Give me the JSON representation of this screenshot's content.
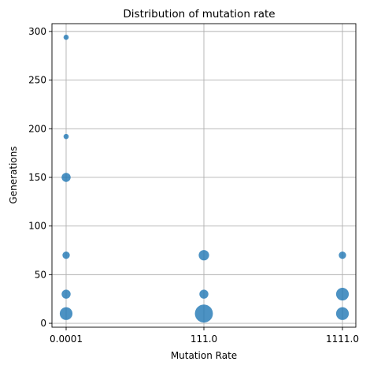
{
  "chart_data": {
    "type": "scatter",
    "title": "Distribution of mutation rate",
    "xlabel": "Mutation Rate",
    "ylabel": "Generations",
    "x_categories": [
      "0.0001",
      "111.0",
      "1111.0"
    ],
    "y_ticks": [
      0,
      50,
      100,
      150,
      200,
      250,
      300
    ],
    "ylim": [
      -4,
      308
    ],
    "grid": true,
    "colors": {
      "point": "#1f77b4"
    },
    "points": [
      {
        "x": "0.0001",
        "y": 294,
        "count": 1
      },
      {
        "x": "0.0001",
        "y": 192,
        "count": 1
      },
      {
        "x": "0.0001",
        "y": 150,
        "count": 3
      },
      {
        "x": "0.0001",
        "y": 70,
        "count": 2
      },
      {
        "x": "0.0001",
        "y": 30,
        "count": 3
      },
      {
        "x": "0.0001",
        "y": 10,
        "count": 6
      },
      {
        "x": "111.0",
        "y": 70,
        "count": 4
      },
      {
        "x": "111.0",
        "y": 30,
        "count": 3
      },
      {
        "x": "111.0",
        "y": 10,
        "count": 12
      },
      {
        "x": "1111.0",
        "y": 70,
        "count": 2
      },
      {
        "x": "1111.0",
        "y": 30,
        "count": 6
      },
      {
        "x": "1111.0",
        "y": 10,
        "count": 6
      }
    ]
  }
}
